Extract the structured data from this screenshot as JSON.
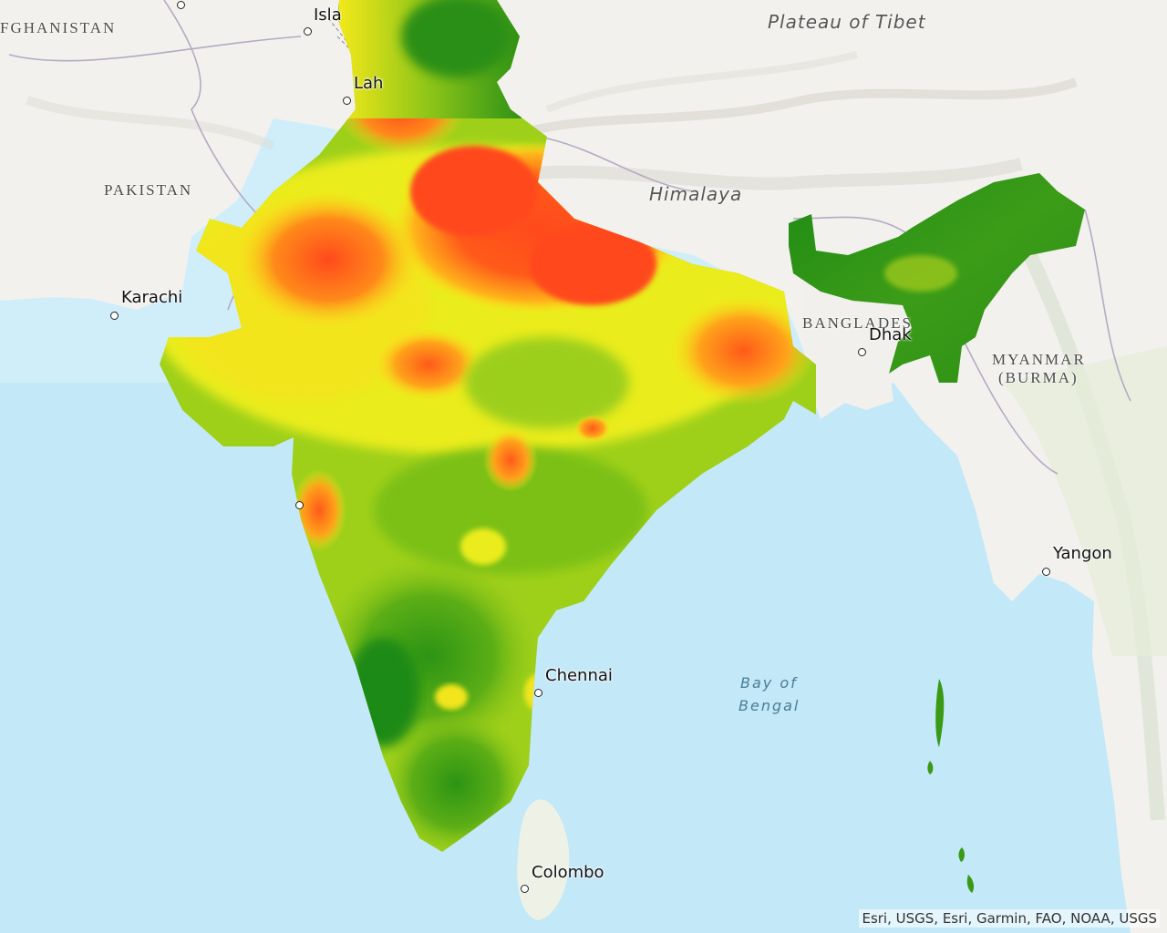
{
  "labels": {
    "countries": {
      "afghanistan": "FGHANISTAN",
      "pakistan": "PAKISTAN",
      "bangladesh": "BANGLADES",
      "myanmar_line1": "MYANMAR",
      "myanmar_line2": "(BURMA)"
    },
    "regions": {
      "tibet": "Plateau of Tibet",
      "himalaya": "Himalaya"
    },
    "water": {
      "bay_line1": "Bay of",
      "bay_line2": "Bengal"
    },
    "cities": {
      "islamabad": "Isla",
      "lahore": "Lah",
      "karachi": "Karachi",
      "dhaka": "Dhak",
      "yangon": "Yangon",
      "chennai": "Chennai",
      "colombo": "Colombo"
    }
  },
  "attribution": "Esri, USGS, Esri, Garmin, FAO, NOAA, USGS",
  "colors": {
    "ocean": "#cfeefa",
    "land": "#f2f1ee",
    "high": "#ff4a1c",
    "medium_high": "#ffb31a",
    "medium": "#f2f01a",
    "low": "#a6d81a",
    "lowest": "#1e8a14"
  }
}
